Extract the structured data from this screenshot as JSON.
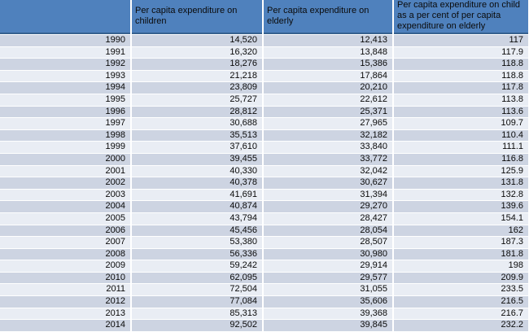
{
  "colors": {
    "header_bg": "#4f81bd",
    "header_border": "#36618f",
    "row_stripe_dark": "#cdd4e2",
    "row_stripe_light": "#e9edf4",
    "text": "#000000"
  },
  "chart_data": {
    "type": "table",
    "title": "",
    "columns": [
      "",
      "Per capita expenditure on children",
      "Per capita expenditure on elderly",
      "Per capita expenditure on child as a per cent of per capita expenditure on elderly"
    ],
    "rows": [
      [
        "1990",
        "14,520",
        "12,413",
        "117"
      ],
      [
        "1991",
        "16,320",
        "13,848",
        "117.9"
      ],
      [
        "1992",
        "18,276",
        "15,386",
        "118.8"
      ],
      [
        "1993",
        "21,218",
        "17,864",
        "118.8"
      ],
      [
        "1994",
        "23,809",
        "20,210",
        "117.8"
      ],
      [
        "1995",
        "25,727",
        "22,612",
        "113.8"
      ],
      [
        "1996",
        "28,812",
        "25,371",
        "113.6"
      ],
      [
        "1997",
        "30,688",
        "27,965",
        "109.7"
      ],
      [
        "1998",
        "35,513",
        "32,182",
        "110.4"
      ],
      [
        "1999",
        "37,610",
        "33,840",
        "111.1"
      ],
      [
        "2000",
        "39,455",
        "33,772",
        "116.8"
      ],
      [
        "2001",
        "40,330",
        "32,042",
        "125.9"
      ],
      [
        "2002",
        "40,378",
        "30,627",
        "131.8"
      ],
      [
        "2003",
        "41,691",
        "31,394",
        "132.8"
      ],
      [
        "2004",
        "40,874",
        "29,270",
        "139.6"
      ],
      [
        "2005",
        "43,794",
        "28,427",
        "154.1"
      ],
      [
        "2006",
        "45,456",
        "28,054",
        "162"
      ],
      [
        "2007",
        "53,380",
        "28,507",
        "187.3"
      ],
      [
        "2008",
        "56,336",
        "30,980",
        "181.8"
      ],
      [
        "2009",
        "59,242",
        "29,914",
        "198"
      ],
      [
        "2010",
        "62,095",
        "29,577",
        "209.9"
      ],
      [
        "2011",
        "72,504",
        "31,055",
        "233.5"
      ],
      [
        "2012",
        "77,084",
        "35,606",
        "216.5"
      ],
      [
        "2013",
        "85,313",
        "39,368",
        "216.7"
      ],
      [
        "2014",
        "92,502",
        "39,845",
        "232.2"
      ]
    ]
  }
}
